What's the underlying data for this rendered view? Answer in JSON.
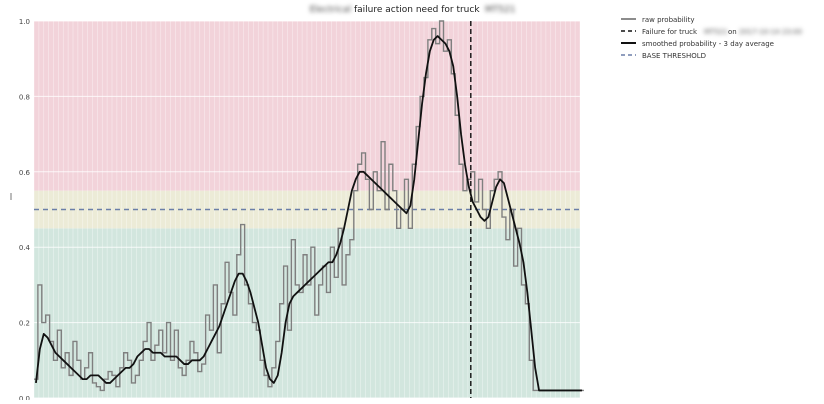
{
  "chart_data": {
    "type": "line",
    "title": {
      "redacted_prefix": "Electrical",
      "main": "failure action need for truck",
      "redacted_suffix": "MT521"
    },
    "xlabel": "",
    "ylabel": "",
    "xlim": [
      0,
      140
    ],
    "ylim": [
      0,
      1.0
    ],
    "yticks": [
      "0.0",
      "0.2",
      "0.4",
      "0.6",
      "0.8",
      "1.0"
    ],
    "bands": [
      {
        "from": 0.0,
        "to": 0.45,
        "color": "#d2e6de"
      },
      {
        "from": 0.45,
        "to": 0.55,
        "color": "#ecebd7"
      },
      {
        "from": 0.55,
        "to": 1.0,
        "color": "#f2d3da"
      }
    ],
    "threshold": 0.5,
    "failure_x": 112,
    "legend": {
      "position": "outside-right",
      "entries": [
        {
          "key": "raw",
          "label": "raw probability",
          "style": "solid-gray"
        },
        {
          "key": "failure",
          "label_prefix": "Failure for truck",
          "label_redacted_1": "MT521",
          "label_mid": "on",
          "label_redacted_2": "2017-10-14 23:00",
          "style": "dashed-black"
        },
        {
          "key": "smoothed",
          "label": "smoothed probability - 3 day average",
          "style": "solid-black"
        },
        {
          "key": "threshold",
          "label": "BASE THRESHOLD",
          "style": "dashed-blue"
        }
      ]
    },
    "series": [
      {
        "name": "raw probability",
        "values": [
          0.05,
          0.3,
          0.2,
          0.22,
          0.15,
          0.1,
          0.18,
          0.08,
          0.12,
          0.06,
          0.15,
          0.1,
          0.05,
          0.08,
          0.12,
          0.04,
          0.03,
          0.02,
          0.05,
          0.07,
          0.06,
          0.03,
          0.08,
          0.12,
          0.1,
          0.04,
          0.06,
          0.1,
          0.15,
          0.2,
          0.1,
          0.14,
          0.18,
          0.12,
          0.2,
          0.1,
          0.18,
          0.08,
          0.06,
          0.1,
          0.15,
          0.12,
          0.07,
          0.09,
          0.22,
          0.18,
          0.3,
          0.12,
          0.25,
          0.36,
          0.28,
          0.22,
          0.38,
          0.46,
          0.3,
          0.25,
          0.2,
          0.18,
          0.1,
          0.06,
          0.03,
          0.08,
          0.15,
          0.25,
          0.35,
          0.18,
          0.42,
          0.3,
          0.28,
          0.38,
          0.3,
          0.4,
          0.22,
          0.3,
          0.35,
          0.28,
          0.4,
          0.32,
          0.45,
          0.3,
          0.38,
          0.42,
          0.55,
          0.62,
          0.65,
          0.58,
          0.5,
          0.6,
          0.55,
          0.68,
          0.5,
          0.62,
          0.55,
          0.45,
          0.5,
          0.58,
          0.45,
          0.62,
          0.72,
          0.8,
          0.85,
          0.95,
          0.98,
          0.94,
          1.0,
          0.92,
          0.95,
          0.86,
          0.75,
          0.62,
          0.55,
          0.58,
          0.6,
          0.52,
          0.58,
          0.5,
          0.45,
          0.55,
          0.58,
          0.6,
          0.48,
          0.42,
          0.5,
          0.35,
          0.45,
          0.3,
          0.25,
          0.1,
          0.02,
          0.02,
          0.02,
          0.02,
          0.02,
          0.02,
          0.02,
          0.02,
          0.02,
          0.02,
          0.02,
          0.02,
          0.02
        ]
      },
      {
        "name": "smoothed probability - 3 day average",
        "values": [
          0.04,
          0.13,
          0.17,
          0.16,
          0.14,
          0.12,
          0.11,
          0.1,
          0.09,
          0.08,
          0.07,
          0.06,
          0.05,
          0.05,
          0.06,
          0.06,
          0.06,
          0.05,
          0.04,
          0.04,
          0.05,
          0.06,
          0.07,
          0.08,
          0.08,
          0.09,
          0.11,
          0.12,
          0.13,
          0.13,
          0.12,
          0.12,
          0.12,
          0.11,
          0.11,
          0.11,
          0.11,
          0.1,
          0.09,
          0.09,
          0.1,
          0.1,
          0.1,
          0.11,
          0.13,
          0.15,
          0.17,
          0.19,
          0.22,
          0.25,
          0.28,
          0.31,
          0.33,
          0.33,
          0.31,
          0.28,
          0.24,
          0.2,
          0.14,
          0.08,
          0.05,
          0.04,
          0.06,
          0.12,
          0.2,
          0.25,
          0.27,
          0.28,
          0.29,
          0.3,
          0.31,
          0.32,
          0.33,
          0.34,
          0.35,
          0.36,
          0.36,
          0.38,
          0.41,
          0.45,
          0.5,
          0.55,
          0.58,
          0.6,
          0.6,
          0.59,
          0.58,
          0.57,
          0.56,
          0.55,
          0.54,
          0.53,
          0.52,
          0.51,
          0.5,
          0.49,
          0.51,
          0.58,
          0.68,
          0.78,
          0.86,
          0.92,
          0.95,
          0.96,
          0.95,
          0.94,
          0.92,
          0.88,
          0.8,
          0.7,
          0.62,
          0.56,
          0.52,
          0.5,
          0.48,
          0.47,
          0.48,
          0.52,
          0.56,
          0.58,
          0.57,
          0.53,
          0.49,
          0.45,
          0.41,
          0.36,
          0.28,
          0.18,
          0.08,
          0.02,
          0.02,
          0.02,
          0.02,
          0.02,
          0.02,
          0.02,
          0.02,
          0.02,
          0.02,
          0.02,
          0.02
        ]
      }
    ]
  }
}
